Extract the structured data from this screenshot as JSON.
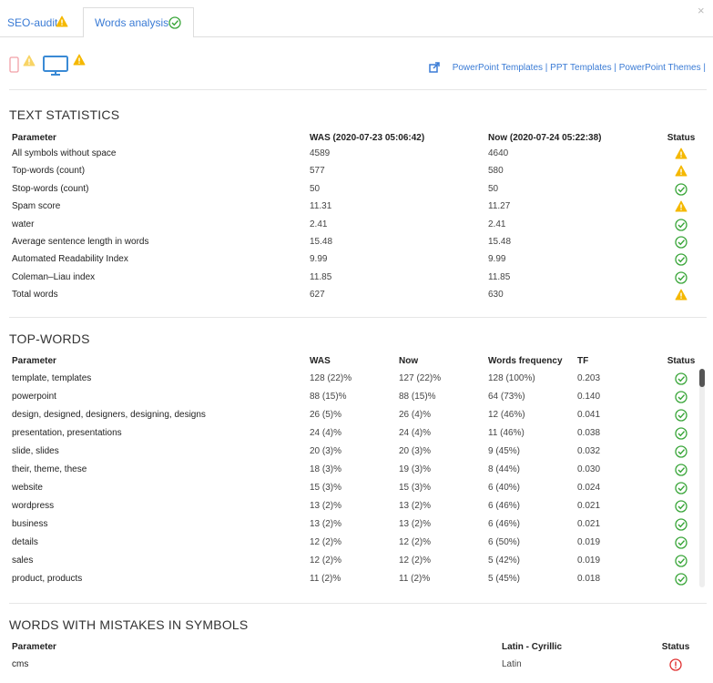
{
  "tabs": [
    "SEO-audit",
    "Words analysis"
  ],
  "close": "×",
  "links": "PowerPoint Templates | PPT Templates | PowerPoint Themes |",
  "text_statistics": {
    "title": "TEXT STATISTICS",
    "header": [
      "Parameter",
      "WAS (2020-07-23 05:06:42)",
      "Now (2020-07-24 05:22:38)",
      "Status"
    ],
    "rows": [
      [
        "All symbols without space",
        "4589",
        "4640"
      ],
      [
        "Top-words (count)",
        "577",
        "580"
      ],
      [
        "Stop-words (count)",
        "50",
        "50"
      ],
      [
        "Spam score",
        "11.31",
        "11.27"
      ],
      [
        "water",
        "2.41",
        "2.41"
      ],
      [
        "Average sentence length in words",
        "15.48",
        "15.48"
      ],
      [
        "Automated Readability Index",
        "9.99",
        "9.99"
      ],
      [
        "Coleman–Liau index",
        "11.85",
        "11.85"
      ],
      [
        "Total words",
        "627",
        "630"
      ]
    ]
  },
  "top_words": {
    "title": "TOP-WORDS",
    "header": [
      "Parameter",
      "WAS",
      "Now",
      "Words frequency",
      "TF",
      "Status"
    ],
    "rows": [
      [
        "template, templates",
        "128 (22)%",
        "127 (22)%",
        "128 (100%)",
        "0.203"
      ],
      [
        "powerpoint",
        "88 (15)%",
        "88 (15)%",
        "64 (73%)",
        "0.140"
      ],
      [
        "design, designed, designers, designing, designs",
        "26 (5)%",
        "26 (4)%",
        "12 (46%)",
        "0.041"
      ],
      [
        "presentation, presentations",
        "24 (4)%",
        "24 (4)%",
        "11 (46%)",
        "0.038"
      ],
      [
        "slide, slides",
        "20 (3)%",
        "20 (3)%",
        "9 (45%)",
        "0.032"
      ],
      [
        "their, theme, these",
        "18 (3)%",
        "19 (3)%",
        "8 (44%)",
        "0.030"
      ],
      [
        "website",
        "15 (3)%",
        "15 (3)%",
        "6 (40%)",
        "0.024"
      ],
      [
        "wordpress",
        "13 (2)%",
        "13 (2)%",
        "6 (46%)",
        "0.021"
      ],
      [
        "business",
        "13 (2)%",
        "13 (2)%",
        "6 (46%)",
        "0.021"
      ],
      [
        "details",
        "12 (2)%",
        "12 (2)%",
        "6 (50%)",
        "0.019"
      ],
      [
        "sales",
        "12 (2)%",
        "12 (2)%",
        "5 (42%)",
        "0.019"
      ],
      [
        "product, products",
        "11 (2)%",
        "11 (2)%",
        "5 (45%)",
        "0.018"
      ]
    ]
  },
  "mistakes": {
    "title": "WORDS WITH MISTAKES IN SYMBOLS",
    "header": [
      "Parameter",
      "Latin - Cyrillic",
      "Status"
    ],
    "rows": [
      [
        "cms",
        "Latin"
      ]
    ]
  }
}
